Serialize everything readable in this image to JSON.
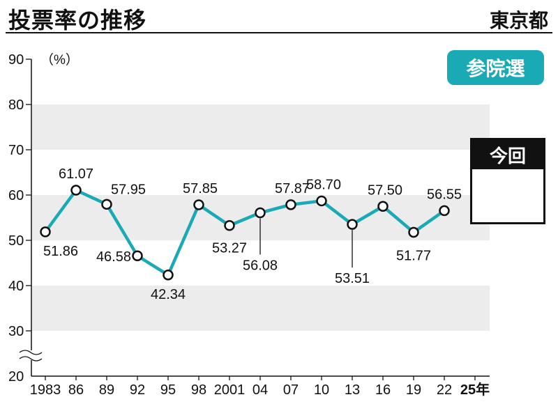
{
  "header": {
    "title": "投票率の推移",
    "region": "東京都"
  },
  "badge": {
    "label": "参院選"
  },
  "current_box": {
    "label": "今回"
  },
  "colors": {
    "line": "#19aab6",
    "band": "#ececec",
    "badge": "#19aab6"
  },
  "chart_data": {
    "type": "line",
    "title": "投票率の推移",
    "unit_label": "（%）",
    "x_labels": [
      "1983",
      "86",
      "89",
      "92",
      "95",
      "98",
      "2001",
      "04",
      "07",
      "10",
      "13",
      "16",
      "19",
      "22",
      "25年"
    ],
    "y_ticks": [
      20,
      30,
      40,
      50,
      60,
      70,
      80,
      90
    ],
    "ylim": [
      20,
      90
    ],
    "axis_break": true,
    "series": [
      {
        "points": [
          {
            "x": "1983",
            "y": 51.86,
            "label": "51.86"
          },
          {
            "x": "86",
            "y": 61.07,
            "label": "61.07"
          },
          {
            "x": "89",
            "y": 57.95,
            "label": "57.95"
          },
          {
            "x": "92",
            "y": 46.58,
            "label": "46.58"
          },
          {
            "x": "95",
            "y": 42.34,
            "label": "42.34"
          },
          {
            "x": "98",
            "y": 57.85,
            "label": "57.85"
          },
          {
            "x": "2001",
            "y": 53.27,
            "label": "53.27"
          },
          {
            "x": "04",
            "y": 56.08,
            "label": "56.08"
          },
          {
            "x": "07",
            "y": 57.87,
            "label": "57.87"
          },
          {
            "x": "10",
            "y": 58.7,
            "label": "58.70"
          },
          {
            "x": "13",
            "y": 53.51,
            "label": "53.51"
          },
          {
            "x": "16",
            "y": 57.5,
            "label": "57.50"
          },
          {
            "x": "19",
            "y": 51.77,
            "label": "51.77"
          },
          {
            "x": "22",
            "y": 56.55,
            "label": "56.55"
          }
        ]
      }
    ]
  }
}
